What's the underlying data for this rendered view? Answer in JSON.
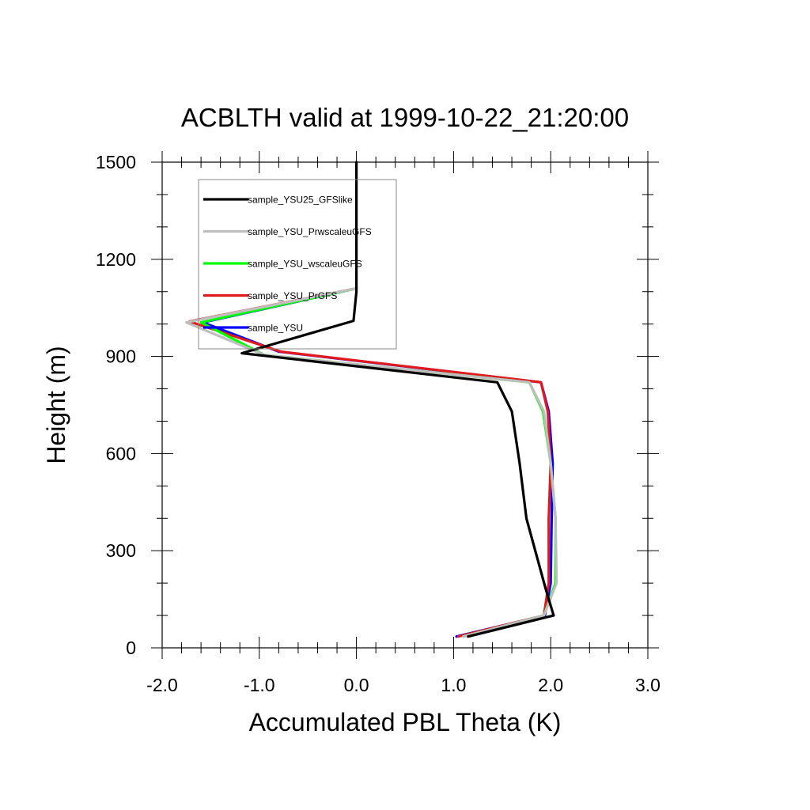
{
  "chart_data": {
    "type": "line",
    "title": "ACBLTH valid at 1999-10-22_21:20:00",
    "xlabel": "Accumulated PBL Theta (K)",
    "ylabel": "Height (m)",
    "xlim": [
      -2.0,
      3.0
    ],
    "ylim": [
      0,
      1500
    ],
    "xticks": [
      -2.0,
      -1.0,
      0.0,
      1.0,
      2.0,
      3.0
    ],
    "xtick_labels": [
      "-2.0",
      "-1.0",
      "0.0",
      "1.0",
      "2.0",
      "3.0"
    ],
    "yticks": [
      0,
      300,
      600,
      900,
      1200,
      1500
    ],
    "ytick_labels": [
      "0",
      "300",
      "600",
      "900",
      "1200",
      "1500"
    ],
    "grid": false,
    "legend_position": "top-left",
    "series": [
      {
        "name": "sample_YSU25_GFSlike",
        "color": "#000000",
        "points": [
          [
            1.15,
            35
          ],
          [
            2.03,
            100
          ],
          [
            1.95,
            180
          ],
          [
            1.75,
            400
          ],
          [
            1.68,
            570
          ],
          [
            1.6,
            730
          ],
          [
            1.45,
            820
          ],
          [
            -1.18,
            910
          ],
          [
            -0.03,
            1010
          ],
          [
            0.0,
            1100
          ],
          [
            0.0,
            1200
          ],
          [
            0.0,
            1500
          ]
        ]
      },
      {
        "name": "sample_YSU_PrwscaleuGFS",
        "color": "#bebebe",
        "points": [
          [
            1.1,
            35
          ],
          [
            1.93,
            100
          ],
          [
            2.06,
            200
          ],
          [
            2.05,
            400
          ],
          [
            2.0,
            570
          ],
          [
            1.93,
            730
          ],
          [
            1.78,
            820
          ],
          [
            -0.95,
            905
          ],
          [
            -1.75,
            1005
          ],
          [
            0.0,
            1110
          ]
        ]
      },
      {
        "name": "sample_YSU_wscaleuGFS",
        "color": "#00ff00",
        "points": [
          [
            1.1,
            35
          ],
          [
            1.93,
            100
          ],
          [
            2.05,
            200
          ],
          [
            2.05,
            400
          ],
          [
            2.0,
            570
          ],
          [
            1.92,
            730
          ],
          [
            1.78,
            820
          ],
          [
            -0.95,
            905
          ],
          [
            -1.6,
            1005
          ],
          [
            0.0,
            1110
          ]
        ]
      },
      {
        "name": "sample_YSU_PrGFS",
        "color": "#e31a1c",
        "points": [
          [
            1.05,
            35
          ],
          [
            1.93,
            100
          ],
          [
            1.98,
            200
          ],
          [
            1.98,
            400
          ],
          [
            2.0,
            570
          ],
          [
            1.97,
            730
          ],
          [
            1.9,
            820
          ],
          [
            -0.78,
            915
          ],
          [
            -1.72,
            1008
          ],
          [
            0.0,
            1110
          ]
        ]
      },
      {
        "name": "sample_YSU",
        "color": "#0000ff",
        "points": [
          [
            1.03,
            35
          ],
          [
            1.94,
            100
          ],
          [
            2.0,
            200
          ],
          [
            2.01,
            400
          ],
          [
            2.02,
            570
          ],
          [
            1.98,
            730
          ],
          [
            1.9,
            820
          ],
          [
            -0.8,
            915
          ],
          [
            -1.58,
            1005
          ],
          [
            0.0,
            1110
          ]
        ]
      }
    ]
  }
}
